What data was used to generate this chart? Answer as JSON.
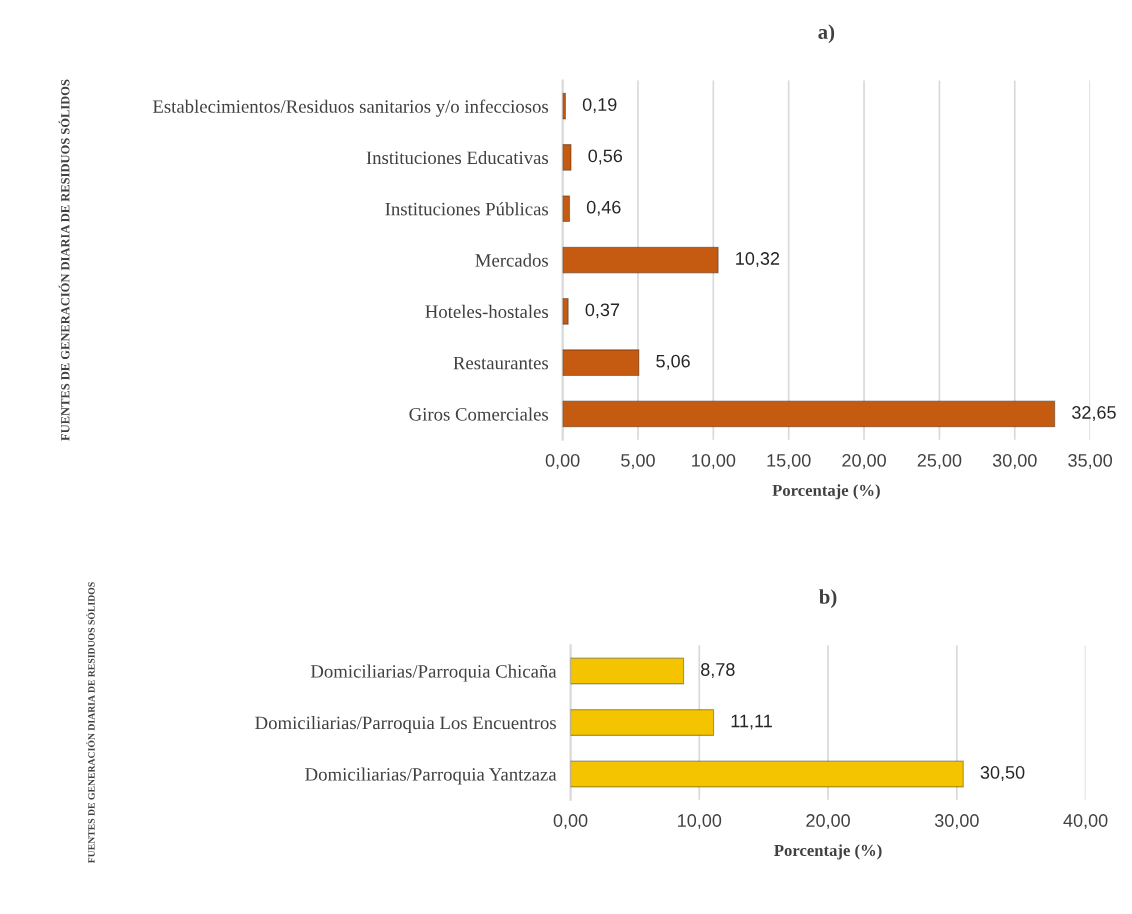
{
  "chart_data": [
    {
      "type": "bar",
      "orientation": "horizontal",
      "title": "a)",
      "xlabel": "Porcentaje (%)",
      "ylabel": "FUENTES DE GENERACIÓN DIARIA DE RESIDUOS SÓLIDOS",
      "categories": [
        "Establecimientos/Residuos sanitarios y/o infecciosos",
        "Instituciones Educativas",
        "Instituciones Públicas",
        "Mercados",
        "Hoteles-hostales",
        "Restaurantes",
        "Giros Comerciales"
      ],
      "values": [
        0.19,
        0.56,
        0.46,
        10.32,
        0.37,
        5.06,
        32.65
      ],
      "value_labels": [
        "0,19",
        "0,56",
        "0,46",
        "10,32",
        "0,37",
        "5,06",
        "32,65"
      ],
      "color": "#c55a11",
      "xlim": [
        0,
        35
      ],
      "xticks": [
        {
          "value": 0,
          "label": "0,00"
        },
        {
          "value": 5,
          "label": "5,00"
        },
        {
          "value": 10,
          "label": "10,00"
        },
        {
          "value": 15,
          "label": "15,00"
        },
        {
          "value": 20,
          "label": "20,00"
        },
        {
          "value": 25,
          "label": "25,00"
        },
        {
          "value": 30,
          "label": "30,00"
        },
        {
          "value": 35,
          "label": "35,00"
        }
      ],
      "grid": "x"
    },
    {
      "type": "bar",
      "orientation": "horizontal",
      "title": "b)",
      "xlabel": "Porcentaje (%)",
      "ylabel": "FUENTES DE GENERACIÓN DIARIA DE RESIDUOS SÓLIDOS",
      "categories": [
        "Domiciliarias/Parroquia Chicaña",
        "Domiciliarias/Parroquia Los Encuentros",
        "Domiciliarias/Parroquia Yantzaza"
      ],
      "values": [
        8.78,
        11.11,
        30.5
      ],
      "value_labels": [
        "8,78",
        "11,11",
        "30,50"
      ],
      "color": "#f5c400",
      "xlim": [
        0,
        40
      ],
      "xticks": [
        {
          "value": 0,
          "label": "0,00"
        },
        {
          "value": 10,
          "label": "10,00"
        },
        {
          "value": 20,
          "label": "20,00"
        },
        {
          "value": 30,
          "label": "30,00"
        },
        {
          "value": 40,
          "label": "40,00"
        }
      ],
      "grid": "x"
    }
  ]
}
